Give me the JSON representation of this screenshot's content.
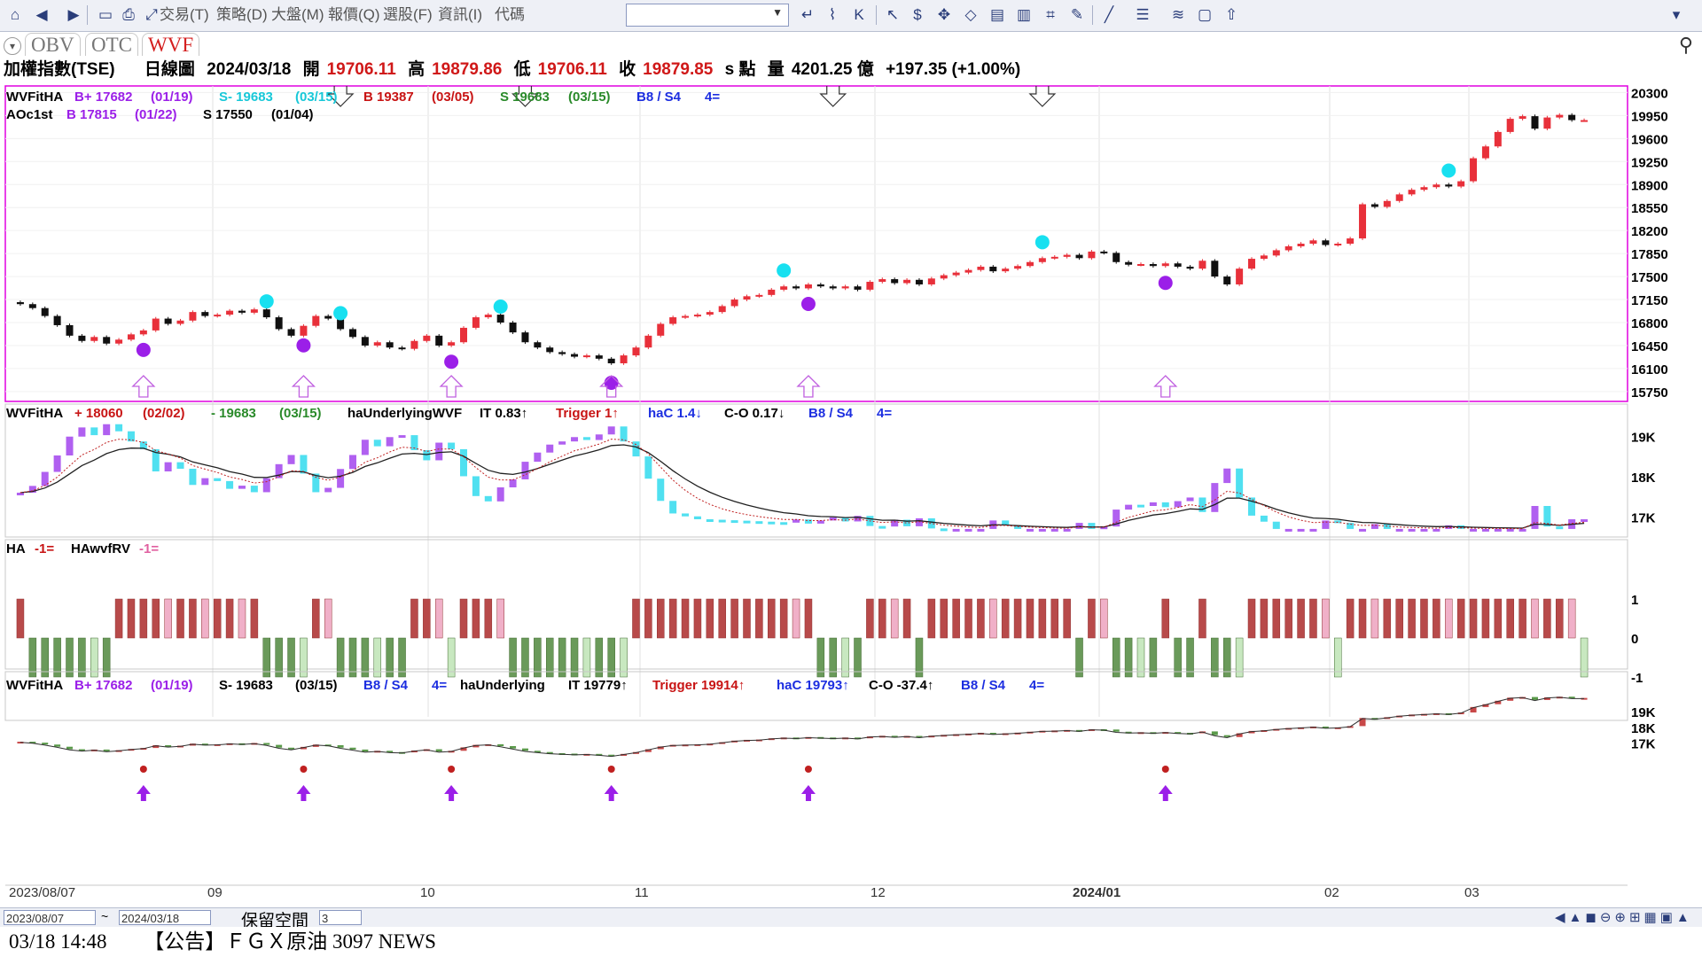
{
  "toolbar": {
    "menus": [
      "交易(T)",
      "策略(D)",
      "大盤(M)",
      "報價(Q)",
      "選股(F)",
      "資訊(I)",
      "代碼"
    ],
    "code_value": ""
  },
  "tabs": [
    "OBV",
    "OTC",
    "WVF"
  ],
  "active_tab": "WVF",
  "info": {
    "name": "加權指數(TSE)",
    "period": "日線圖",
    "date": "2024/03/18",
    "open_label": "開",
    "open": "19706.11",
    "high_label": "高",
    "high": "19879.86",
    "low_label": "低",
    "low": "19706.11",
    "close_label": "收",
    "close": "19879.85",
    "unit": "s 點",
    "volume_label": "量",
    "volume": "4201.25 億",
    "change": "+197.35 (+1.00%)"
  },
  "panels": {
    "p1": {
      "row1": [
        {
          "t": "WVFitHA",
          "c": "#000000"
        },
        {
          "t": "B+ 17682",
          "c": "#9b1fe8"
        },
        {
          "t": "(01/19)",
          "c": "#9b1fe8"
        },
        {
          "t": "S- 19683",
          "c": "#18c8d8"
        },
        {
          "t": "(03/15)",
          "c": "#18c8d8"
        },
        {
          "t": "B 19387",
          "c": "#c81414"
        },
        {
          "t": "(03/05)",
          "c": "#c81414"
        },
        {
          "t": "S 19683",
          "c": "#2a8a2a"
        },
        {
          "t": "(03/15)",
          "c": "#2a8a2a"
        },
        {
          "t": "B8 / S4",
          "c": "#1c2ee0"
        },
        {
          "t": "4=",
          "c": "#1c2ee0"
        }
      ],
      "row2": [
        {
          "t": "AOc1st",
          "c": "#000000"
        },
        {
          "t": "B 17815",
          "c": "#9b1fe8"
        },
        {
          "t": "(01/22)",
          "c": "#9b1fe8"
        },
        {
          "t": "S 17550",
          "c": "#000000"
        },
        {
          "t": "(01/04)",
          "c": "#000000"
        }
      ],
      "ticks": [
        "20300",
        "19950",
        "19600",
        "19250",
        "18900",
        "18550",
        "18200",
        "17850",
        "17500",
        "17150",
        "16800",
        "16450",
        "16100",
        "15750"
      ]
    },
    "p2": {
      "row1": [
        {
          "t": "WVFitHA",
          "c": "#000000"
        },
        {
          "t": "+ 18060",
          "c": "#c81414"
        },
        {
          "t": "(02/02)",
          "c": "#c81414"
        },
        {
          "t": "- 19683",
          "c": "#2a8a2a"
        },
        {
          "t": "(03/15)",
          "c": "#2a8a2a"
        },
        {
          "t": "haUnderlyingWVF",
          "c": "#000000"
        },
        {
          "t": "IT 0.83↑",
          "c": "#000000"
        },
        {
          "t": "Trigger 1↑",
          "c": "#c81414"
        },
        {
          "t": "haC 1.4↓",
          "c": "#1c2ee0"
        },
        {
          "t": "C-O 0.17↓",
          "c": "#000000"
        },
        {
          "t": "B8 / S4",
          "c": "#1c2ee0"
        },
        {
          "t": "4=",
          "c": "#1c2ee0"
        }
      ],
      "ticks": [
        "19K",
        "18K",
        "17K"
      ]
    },
    "p3": {
      "row1": [
        {
          "t": "HA",
          "c": "#000000"
        },
        {
          "t": "-1=",
          "c": "#c81414"
        },
        {
          "t": "HAwvfRV",
          "c": "#000000"
        },
        {
          "t": "-1=",
          "c": "#e060a0"
        }
      ],
      "ticks": [
        "1",
        "0",
        "-1"
      ]
    },
    "p4": {
      "row1": [
        {
          "t": "WVFitHA",
          "c": "#000000"
        },
        {
          "t": "B+ 17682",
          "c": "#9b1fe8"
        },
        {
          "t": "(01/19)",
          "c": "#9b1fe8"
        },
        {
          "t": "S- 19683",
          "c": "#000000"
        },
        {
          "t": "(03/15)",
          "c": "#000000"
        },
        {
          "t": "B8 / S4",
          "c": "#1c2ee0"
        },
        {
          "t": "4=",
          "c": "#1c2ee0"
        },
        {
          "t": "haUnderlying",
          "c": "#000000"
        },
        {
          "t": "IT 19779↑",
          "c": "#000000"
        },
        {
          "t": "Trigger 19914↑",
          "c": "#c81414"
        },
        {
          "t": "haC 19793↑",
          "c": "#1c2ee0"
        },
        {
          "t": "C-O -37.4↑",
          "c": "#000000"
        },
        {
          "t": "B8 / S4",
          "c": "#1c2ee0"
        },
        {
          "t": "4=",
          "c": "#1c2ee0"
        }
      ],
      "ticks": [
        "19K",
        "18K",
        "17K"
      ]
    }
  },
  "chart_data": {
    "type": "candlestick",
    "closes": [
      17080,
      17020,
      16900,
      16760,
      16600,
      16520,
      16580,
      16480,
      16540,
      16620,
      16680,
      16860,
      16780,
      16830,
      16960,
      16900,
      16920,
      16980,
      16950,
      17000,
      16880,
      16700,
      16600,
      16750,
      16900,
      16860,
      16700,
      16580,
      16450,
      16500,
      16420,
      16400,
      16520,
      16600,
      16450,
      16500,
      16720,
      16880,
      16920,
      16800,
      16650,
      16500,
      16420,
      16350,
      16320,
      16280,
      16300,
      16250,
      16180,
      16300,
      16420,
      16600,
      16780,
      16880,
      16900,
      16920,
      16960,
      17050,
      17150,
      17200,
      17220,
      17300,
      17350,
      17320,
      17380,
      17350,
      17320,
      17350,
      17300,
      17420,
      17460,
      17400,
      17450,
      17380,
      17470,
      17520,
      17560,
      17600,
      17650,
      17580,
      17620,
      17660,
      17720,
      17780,
      17800,
      17830,
      17780,
      17880,
      17860,
      17720,
      17680,
      17690,
      17660,
      17700,
      17650,
      17620,
      17740,
      17500,
      17380,
      17620,
      17770,
      17820,
      17900,
      17960,
      18000,
      18050,
      17980,
      18000,
      18080,
      18600,
      18560,
      18650,
      18750,
      18820,
      18860,
      18900,
      18870,
      18950,
      19300,
      19480,
      19700,
      19900,
      19940,
      19750,
      19920,
      19960,
      19880,
      19880
    ],
    "y_ticks": [
      20300,
      19950,
      19600,
      19250,
      18900,
      18550,
      18200,
      17850,
      17500,
      17150,
      16800,
      16450,
      16100,
      15750
    ],
    "x_labels": [
      "2023/08/07",
      "09",
      "10",
      "11",
      "12",
      "2024/01",
      "02",
      "03"
    ],
    "panel2_ticks": [
      "19K",
      "18K",
      "17K"
    ],
    "panel3_ticks": [
      "1",
      "0",
      "-1"
    ],
    "panel4_ticks": [
      "19K",
      "18K",
      "17K"
    ]
  },
  "bottom": {
    "start_date": "2023/08/07",
    "tilde": "~",
    "end_date": "2024/03/18",
    "keep_label": "保留空間",
    "keep_value": "3"
  },
  "news": {
    "time": "03/18 14:48",
    "text": "【公告】ＦＧＸ原油 3097 NEWS"
  }
}
